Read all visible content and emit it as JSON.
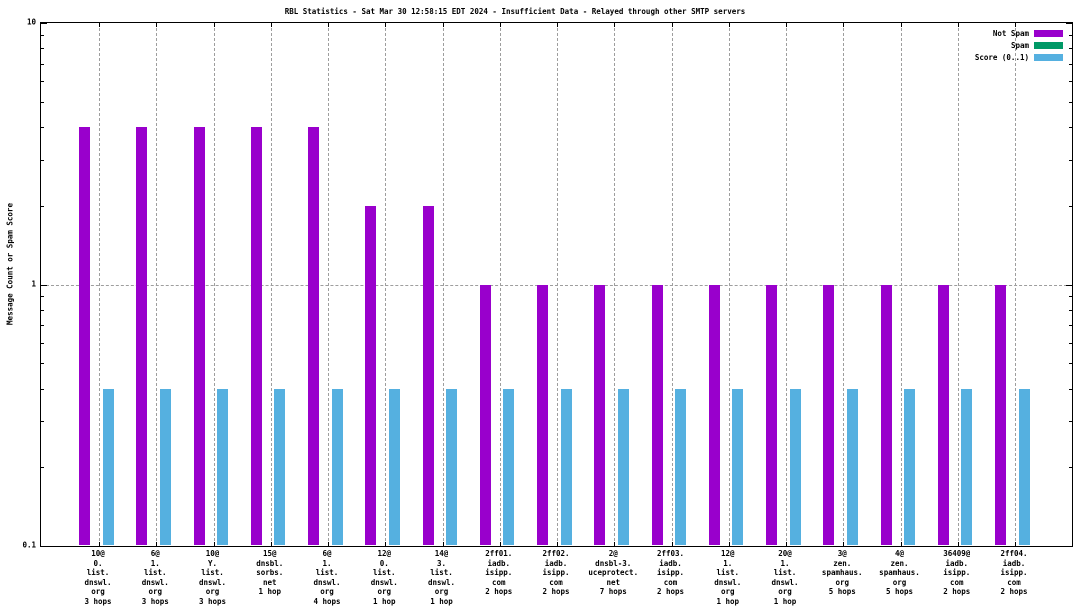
{
  "chart_data": {
    "type": "bar",
    "title": "RBL Statistics - Sat Mar 30 12:58:15 EDT 2024 - Insufficient Data - Relayed through other SMTP servers",
    "ylabel": "Message Count or Spam Score",
    "xlabel": "",
    "yscale": "log",
    "ylim": [
      0.1,
      10
    ],
    "yticks": [
      {
        "label": "10",
        "value": 10
      },
      {
        "label": "1",
        "value": 1
      },
      {
        "label": "0.1",
        "value": 0.1
      }
    ],
    "grid": {
      "vertical_per_category": true,
      "horizontal_at": [
        1
      ],
      "style": "dashed",
      "color": "#9e9e9e"
    },
    "legend": {
      "position": "top-right",
      "entries": [
        {
          "label": "Not Spam",
          "color": "#9900cc"
        },
        {
          "label": "Spam",
          "color": "#009966"
        },
        {
          "label": "Score (0..1)",
          "color": "#55b0e0"
        }
      ]
    },
    "categories": [
      [
        "10@",
        "0.",
        "list.",
        "dnswl.",
        "org",
        "3 hops"
      ],
      [
        "6@",
        "1.",
        "list.",
        "dnswl.",
        "org",
        "3 hops"
      ],
      [
        "10@",
        "Y.",
        "list.",
        "dnswl.",
        "org",
        "3 hops"
      ],
      [
        "15@",
        "dnsbl.",
        "sorbs.",
        "net",
        "1 hop"
      ],
      [
        "6@",
        "1.",
        "list.",
        "dnswl.",
        "org",
        "4 hops"
      ],
      [
        "12@",
        "0.",
        "list.",
        "dnswl.",
        "org",
        "1 hop"
      ],
      [
        "14@",
        "3.",
        "list.",
        "dnswl.",
        "org",
        "1 hop"
      ],
      [
        "2ff01.",
        "iadb.",
        "isipp.",
        "com",
        "2 hops"
      ],
      [
        "2ff02.",
        "iadb.",
        "isipp.",
        "com",
        "2 hops"
      ],
      [
        "2@",
        "dnsbl-3.",
        "uceprotect.",
        "net",
        "7 hops"
      ],
      [
        "2ff03.",
        "iadb.",
        "isipp.",
        "com",
        "2 hops"
      ],
      [
        "12@",
        "1.",
        "list.",
        "dnswl.",
        "org",
        "1 hop"
      ],
      [
        "20@",
        "1.",
        "list.",
        "dnswl.",
        "org",
        "1 hop"
      ],
      [
        "3@",
        "zen.",
        "spamhaus.",
        "org",
        "5 hops"
      ],
      [
        "4@",
        "zen.",
        "spamhaus.",
        "org",
        "5 hops"
      ],
      [
        "36409@",
        "iadb.",
        "isipp.",
        "com",
        "2 hops"
      ],
      [
        "2ff04.",
        "iadb.",
        "isipp.",
        "com",
        "2 hops"
      ]
    ],
    "series": [
      {
        "name": "Not Spam",
        "color": "#9900cc",
        "values": [
          4,
          4,
          4,
          4,
          4,
          2,
          2,
          1,
          1,
          1,
          1,
          1,
          1,
          1,
          1,
          1,
          1
        ]
      },
      {
        "name": "Spam",
        "color": "#009966",
        "values": [
          0,
          0,
          0,
          0,
          0,
          0,
          0,
          0,
          0,
          0,
          0,
          0,
          0,
          0,
          0,
          0,
          0
        ]
      },
      {
        "name": "Score (0..1)",
        "color": "#55b0e0",
        "values": [
          0.4,
          0.4,
          0.4,
          0.4,
          0.4,
          0.4,
          0.4,
          0.4,
          0.4,
          0.4,
          0.4,
          0.4,
          0.4,
          0.4,
          0.4,
          0.4,
          0.4
        ]
      }
    ]
  }
}
